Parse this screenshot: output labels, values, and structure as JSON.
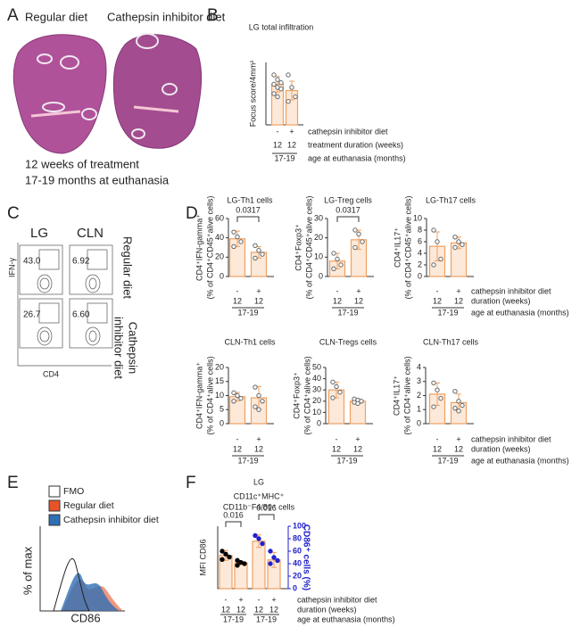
{
  "figure": {
    "letters": [
      "A",
      "B",
      "C",
      "D",
      "E",
      "F"
    ],
    "panel_a": {
      "labels": [
        "Regular diet",
        "Cathepsin inhibitor diet"
      ],
      "notes": [
        "12 weeks of treatment",
        "17-19 months at euthanasia"
      ]
    },
    "panel_c": {
      "columns": [
        "LG",
        "CLN"
      ],
      "rows": [
        "Regular diet",
        [
          "Cathepsin",
          "inhibitor diet"
        ]
      ],
      "gates": [
        [
          {
            "value": 43,
            "label": "43.0"
          },
          6.92
        ],
        [
          26.7,
          {
            "value": 6.6,
            "label": "6.60"
          }
        ]
      ],
      "ylabel": "IFN-γ",
      "xlabel": "CD4"
    },
    "panel_e": {
      "legend": [
        {
          "name": "FMO",
          "color": "#ffffff"
        },
        {
          "name": "Regular diet",
          "color": "#e8542a"
        },
        {
          "name": "Cathepsin inhibitor diet",
          "color": "#2f6fb5"
        }
      ],
      "ylabel": "% of max",
      "xlabel": "CD86"
    }
  },
  "chart_data": [
    {
      "type": "bar",
      "title": "LG total infiltration",
      "ylabel": [
        "Focus score/4mm²"
      ],
      "ylim": [
        0,
        4
      ],
      "series": [
        {
          "color": "#f0a060",
          "values": [
            2.6,
            2.2
          ],
          "errors": [
            0.5,
            0.6
          ],
          "points": [
            [
              3.2,
              2.9,
              2.7,
              2.6,
              2.4,
              2.3,
              2.0,
              1.8
            ],
            [
              3.2,
              2.4,
              1.8,
              1.5
            ]
          ]
        }
      ],
      "rows": [
        [
          "-",
          "+"
        ],
        [
          "12",
          "12"
        ]
      ],
      "groups": [
        "17-19"
      ],
      "row_labels": [
        "cathepsin inhibitor diet",
        "treatment duration (weeks)",
        "age at euthanasia (months)"
      ]
    },
    {
      "type": "bar",
      "title": "LG-Th1 cells",
      "ylabel": [
        "CD4⁺IFN-gamma⁺",
        "(% of CD4⁺CD45⁺alive cells)"
      ],
      "ylim": [
        0,
        60
      ],
      "yticks": [
        0,
        20,
        40,
        60
      ],
      "series": [
        {
          "color": "#f0a060",
          "values": [
            39,
            25
          ],
          "errors": [
            8,
            6
          ],
          "points": [
            [
              46,
              41,
              36,
              31
            ],
            [
              32,
              27,
              23,
              19
            ]
          ]
        }
      ],
      "pvalues": [
        "0.0317"
      ],
      "rows": [
        [
          "-",
          "+"
        ],
        [
          "12",
          "12"
        ]
      ],
      "groups": [
        "17-19"
      ]
    },
    {
      "type": "bar",
      "title": "LG-Treg cells",
      "ylabel": [
        "CD4⁺Foxp3⁺",
        "(% of CD4⁺CD45⁺alive cells)"
      ],
      "ylim": [
        0,
        30
      ],
      "yticks": [
        0,
        10,
        20,
        30
      ],
      "series": [
        {
          "color": "#f0a060",
          "values": [
            8,
            19
          ],
          "errors": [
            4,
            5
          ],
          "points": [
            [
              12,
              9,
              6,
              4
            ],
            [
              24,
              22,
              18,
              15
            ]
          ]
        }
      ],
      "pvalues": [
        "0.0317"
      ],
      "rows": [
        [
          "-",
          "+"
        ],
        [
          "12",
          "12"
        ]
      ],
      "groups": [
        "17-19"
      ]
    },
    {
      "type": "bar",
      "title": "LG-Th17 cells",
      "ylabel": [
        "CD4⁺IL17⁺",
        "(% of CD4⁺CD45⁺alive cells)"
      ],
      "ylim": [
        0,
        10
      ],
      "yticks": [
        0,
        2,
        4,
        6,
        8,
        10
      ],
      "series": [
        {
          "color": "#f0a060",
          "values": [
            5.2,
            5.8
          ],
          "errors": [
            2.5,
            1
          ],
          "points": [
            [
              8,
              6,
              3,
              2
            ],
            [
              6.8,
              6,
              5.5,
              5
            ]
          ]
        }
      ],
      "rows": [
        [
          "-",
          "+"
        ],
        [
          "12",
          "12"
        ]
      ],
      "groups": [
        "17-19"
      ],
      "row_labels": [
        "cathepsin inhibitor diet",
        "duration (weeks)",
        "age at euthanasia (months)"
      ]
    },
    {
      "type": "bar",
      "title": "CLN-Th1 cells",
      "ylabel": [
        "CD4⁺IFN-gamma⁺",
        "(% of CD4⁺alive cells)"
      ],
      "ylim": [
        0,
        20
      ],
      "yticks": [
        0,
        5,
        10,
        15,
        20
      ],
      "series": [
        {
          "color": "#f0a060",
          "values": [
            9.6,
            9.2
          ],
          "errors": [
            1.5,
            4
          ],
          "points": [
            [
              11,
              10,
              9,
              8
            ],
            [
              13,
              10,
              8,
              6,
              5
            ]
          ]
        }
      ],
      "rows": [
        [
          "-",
          "+"
        ],
        [
          "12",
          "12"
        ]
      ],
      "groups": [
        "17-19"
      ]
    },
    {
      "type": "bar",
      "title": "CLN-Tregs cells",
      "ylabel": [
        "CD4⁺Foxp3⁺",
        "(% of CD4⁺alive cells)"
      ],
      "ylim": [
        0,
        50
      ],
      "yticks": [
        0,
        10,
        20,
        30,
        40,
        50
      ],
      "series": [
        {
          "color": "#f0a060",
          "values": [
            30,
            20
          ],
          "errors": [
            7,
            2
          ],
          "points": [
            [
              37,
              33,
              28,
              23
            ],
            [
              22,
              21,
              20,
              19,
              18
            ]
          ]
        }
      ],
      "rows": [
        [
          "-",
          "+"
        ],
        [
          "12",
          "12"
        ]
      ],
      "groups": [
        "17-19"
      ]
    },
    {
      "type": "bar",
      "title": "CLN-Th17 cells",
      "ylabel": [
        "CD4⁺IL17⁺",
        "(% of CD4⁺alive cells)"
      ],
      "ylim": [
        0,
        4
      ],
      "yticks": [
        0,
        1,
        2,
        3,
        4
      ],
      "series": [
        {
          "color": "#f0a060",
          "values": [
            2.1,
            1.5
          ],
          "errors": [
            0.8,
            0.6
          ],
          "points": [
            [
              2.9,
              2.4,
              1.8,
              1.2
            ],
            [
              2.3,
              1.6,
              1.3,
              1.1,
              0.9
            ]
          ]
        }
      ],
      "rows": [
        [
          "-",
          "+"
        ],
        [
          "12",
          "12"
        ]
      ],
      "groups": [
        "17-19"
      ],
      "row_labels": [
        "cathepsin inhibitor diet",
        "duration (weeks)",
        "age at euthanasia (months)"
      ]
    },
    {
      "type": "bar",
      "title": "LG",
      "subtitle": [
        "CD11c⁺MHC⁺",
        "CD11b⁻F4/80⁺ cells"
      ],
      "ylabel": [
        "MFI CD86"
      ],
      "y2label": "CD86⁺ cells (%)",
      "ylim": [
        0,
        1500
      ],
      "y2lim": [
        0,
        100
      ],
      "y2ticks": [
        0,
        20,
        40,
        60,
        80,
        100
      ],
      "series": [
        {
          "color": "#f0a060",
          "point_color": "#000000",
          "values": [
            800,
            620,
            null,
            null
          ],
          "errors": [
            120,
            40,
            null,
            null
          ],
          "points": [
            [
              900,
              830,
              760,
              700
            ],
            [
              680,
              630,
              600,
              560
            ],
            null,
            null
          ]
        },
        {
          "axis": "y2",
          "color": "#f0a060",
          "point_color": "#2222cc",
          "values": [
            null,
            null,
            76,
            46
          ],
          "errors": [
            null,
            null,
            10,
            12
          ],
          "points": [
            null,
            null,
            [
              85,
              80,
              72
            ],
            [
              60,
              50,
              45,
              40
            ]
          ]
        }
      ],
      "pvalues": [
        "0.016",
        "0.016"
      ],
      "rows": [
        [
          "-",
          "+",
          "-",
          "+"
        ],
        [
          "12",
          "12",
          "12",
          "12"
        ]
      ],
      "groups": [
        "17-19",
        "17-19"
      ],
      "row_labels": [
        "cathepsin inhibitor diet",
        "duration (weeks)",
        "age at euthanasia (months)"
      ]
    }
  ]
}
